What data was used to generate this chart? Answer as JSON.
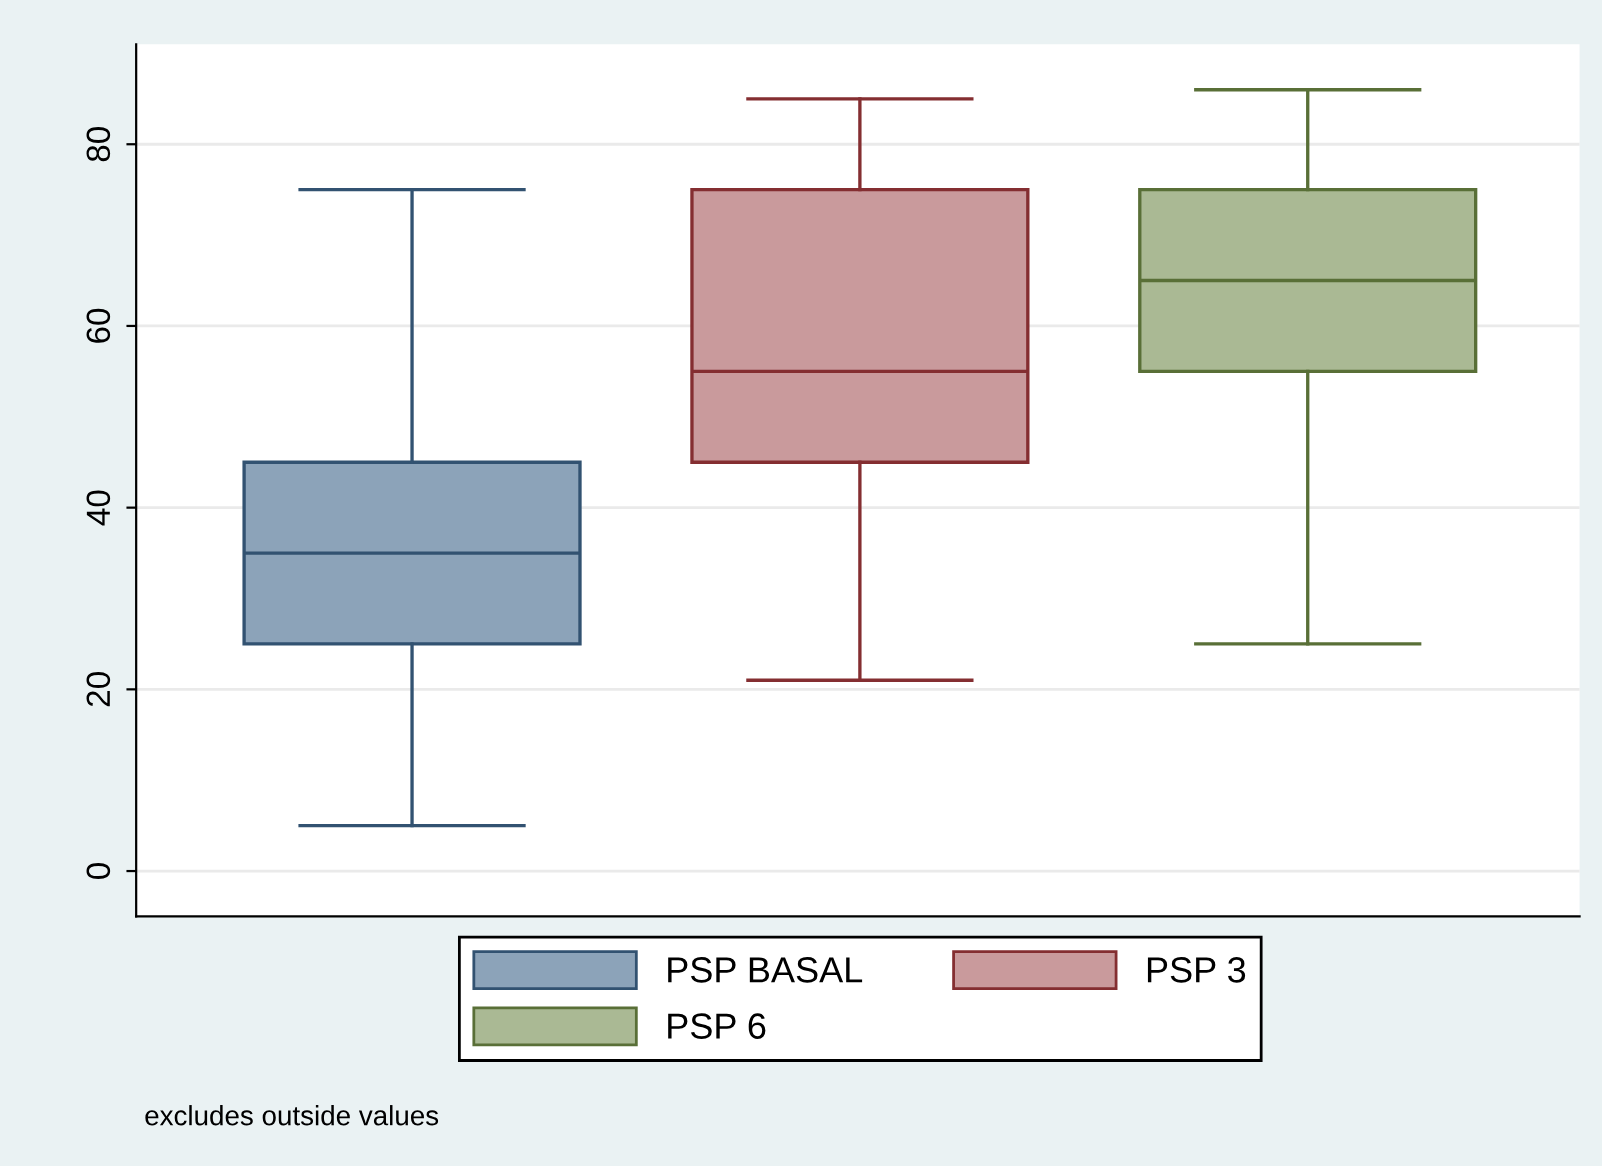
{
  "chart_data": {
    "type": "box",
    "categories": [
      null,
      null,
      null
    ],
    "series": [
      {
        "name": "PSP BASAL",
        "color": "#8ca3b9",
        "boxes": [
          {
            "low": 5,
            "q1": 25,
            "median": 35,
            "q3": 45,
            "high": 75
          },
          null,
          null
        ]
      },
      {
        "name": "PSP 3",
        "color": "#c99a9c",
        "boxes": [
          null,
          {
            "low": 21,
            "q1": 45,
            "median": 55,
            "q3": 75,
            "high": 85
          },
          null
        ]
      },
      {
        "name": "PSP 6",
        "color": "#aab994",
        "boxes": [
          null,
          null,
          {
            "low": 25,
            "q1": 55,
            "median": 65,
            "q3": 75,
            "high": 86
          }
        ]
      }
    ],
    "ylim": [
      -5,
      91
    ],
    "yticks": [
      0,
      20,
      40,
      60,
      80
    ],
    "grid": "y",
    "legend": "bottom",
    "annotations": [
      "excludes outside values"
    ]
  }
}
